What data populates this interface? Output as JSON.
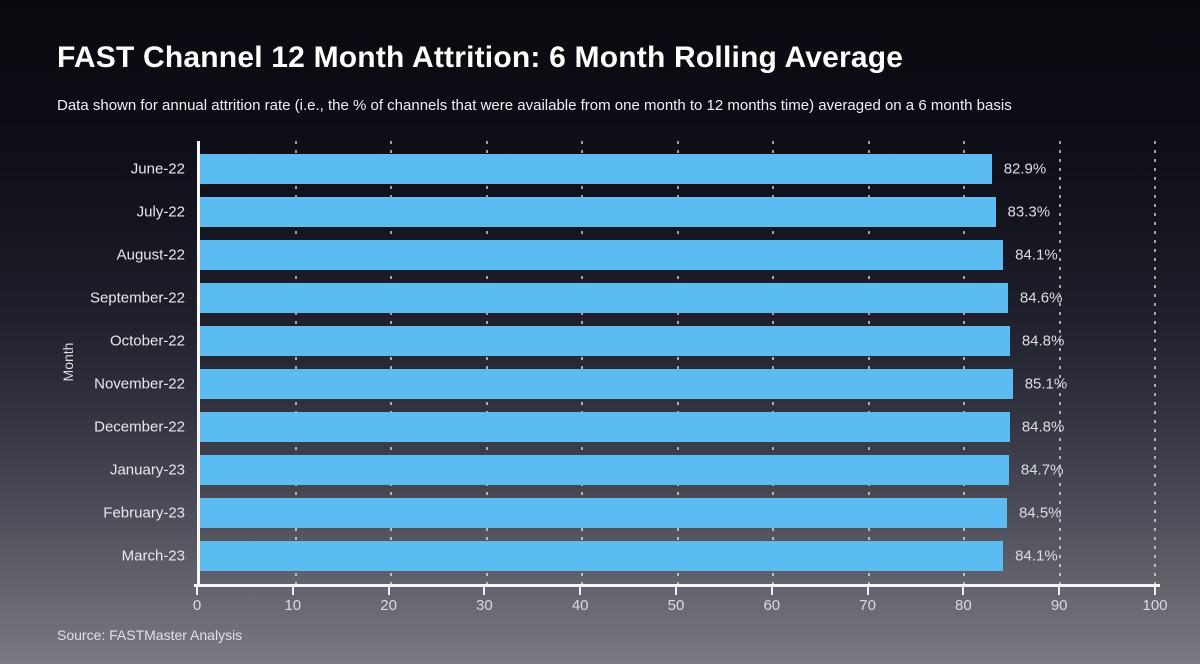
{
  "page": {
    "title": "FAST Channel 12 Month Attrition: 6 Month Rolling Average",
    "subtitle": "Data shown for annual attrition rate (i.e., the % of channels that were available from one month to 12 months time) averaged on a 6 month basis",
    "source": "Source: FASTMaster Analysis"
  },
  "chart_data": {
    "type": "bar",
    "orientation": "horizontal",
    "title": "FAST Channel 12 Month Attrition: 6 Month Rolling Average",
    "subtitle": "Data shown for annual attrition rate (i.e., the % of channels that were available from one month to 12 months time) averaged on a 6 month basis",
    "categories": [
      "June-22",
      "July-22",
      "August-22",
      "September-22",
      "October-22",
      "November-22",
      "December-22",
      "January-23",
      "February-23",
      "March-23"
    ],
    "values": [
      82.9,
      83.3,
      84.1,
      84.6,
      84.8,
      85.1,
      84.8,
      84.7,
      84.5,
      84.1
    ],
    "value_labels": [
      "82.9%",
      "83.3%",
      "84.1%",
      "84.6%",
      "84.8%",
      "85.1%",
      "84.8%",
      "84.7%",
      "84.5%",
      "84.1%"
    ],
    "xlabel": "",
    "ylabel": "Month",
    "xlim": [
      0,
      100
    ],
    "x_ticks": [
      0,
      10,
      20,
      30,
      40,
      50,
      60,
      70,
      80,
      90,
      100
    ],
    "grid": "dotted-vertical",
    "legend": "none",
    "bar_color": "#5bbcf1",
    "source": "Source: FASTMaster Analysis"
  },
  "colors": {
    "bar": "#5bbcf1",
    "background_top": "#09090f",
    "background_bottom": "#797983",
    "axis": "#f7f7fa",
    "text": "#ffffff"
  }
}
